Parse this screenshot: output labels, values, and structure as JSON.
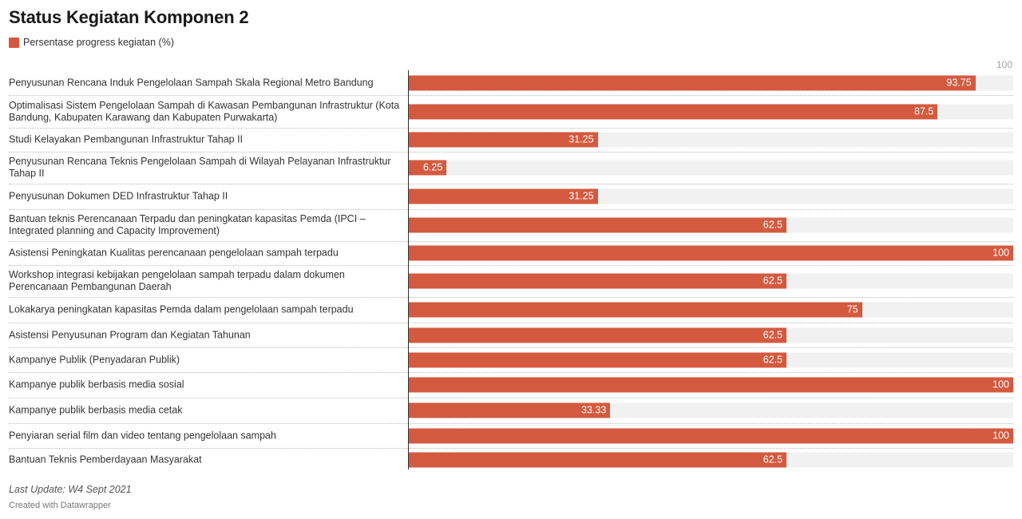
{
  "title": "Status Kegiatan Komponen 2",
  "legend": {
    "label": "Persentase progress kegiatan (%)"
  },
  "axis_max_label": "100",
  "colors": {
    "bar": "#d45a3f",
    "track": "#f1f1f1"
  },
  "footer": {
    "note": "Last Update: W4 Sept 2021",
    "credit": "Created with Datawrapper"
  },
  "chart_data": {
    "type": "bar",
    "orientation": "horizontal",
    "xlim": [
      0,
      100
    ],
    "categories": [
      "Penyusunan Rencana Induk Pengelolaan Sampah Skala Regional Metro Bandung",
      "Optimalisasi Sistem Pengelolaan Sampah di Kawasan Pembangunan Infrastruktur (Kota Bandung, Kabupaten Karawang dan Kabupaten Purwakarta)",
      "Studi Kelayakan Pembangunan Infrastruktur Tahap II",
      "Penyusunan Rencana Teknis Pengelolaan Sampah di Wilayah Pelayanan Infrastruktur Tahap II",
      "Penyusunan Dokumen DED Infrastruktur Tahap II",
      "Bantuan teknis Perencanaan Terpadu dan peningkatan kapasitas Pemda (IPCI – Integrated planning and Capacity Improvement)",
      "Asistensi Peningkatan Kualitas perencanaan pengelolaan sampah terpadu",
      "Workshop integrasi kebijakan pengelolaan sampah terpadu dalam dokumen Perencanaan Pembangunan Daerah",
      "Lokakarya peningkatan kapasitas Pemda dalam pengelolaan sampah terpadu",
      "Asistensi Penyusunan Program dan Kegiatan Tahunan",
      "Kampanye Publik (Penyadaran Publik)",
      "Kampanye publik berbasis media sosial",
      "Kampanye publik berbasis media cetak",
      "Penyiaran serial film dan video tentang pengelolaan sampah",
      "Bantuan Teknis Pemberdayaan Masyarakat"
    ],
    "series": [
      {
        "name": "Persentase progress kegiatan (%)",
        "values": [
          93.75,
          87.5,
          31.25,
          6.25,
          31.25,
          62.5,
          100,
          62.5,
          75,
          62.5,
          62.5,
          100,
          33.33,
          100,
          62.5
        ]
      }
    ]
  }
}
